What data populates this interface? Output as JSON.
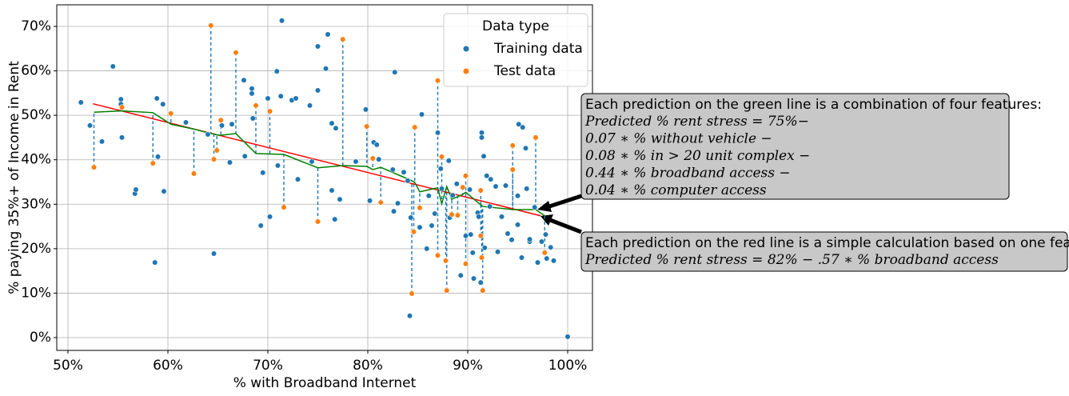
{
  "chart_data": {
    "type": "scatter",
    "xlabel": "% with Broadband Internet",
    "ylabel": "% paying 35%+ of Income in Rent",
    "xlim": [
      48.88,
      102.48
    ],
    "ylim": [
      -2.88,
      74.86
    ],
    "xticks": [
      {
        "value": 50,
        "label": "50%"
      },
      {
        "value": 60,
        "label": "60%"
      },
      {
        "value": 70,
        "label": "70%"
      },
      {
        "value": 80,
        "label": "80%"
      },
      {
        "value": 90,
        "label": "90%"
      },
      {
        "value": 100,
        "label": "100%"
      }
    ],
    "yticks": [
      {
        "value": 0,
        "label": "0%"
      },
      {
        "value": 10,
        "label": "10%"
      },
      {
        "value": 20,
        "label": "20%"
      },
      {
        "value": 30,
        "label": "30%"
      },
      {
        "value": 40,
        "label": "40%"
      },
      {
        "value": 50,
        "label": "50%"
      },
      {
        "value": 60,
        "label": "60%"
      },
      {
        "value": 70,
        "label": "70%"
      }
    ],
    "grid": true,
    "legend_title": "Data type",
    "legend_position": "upper right",
    "series": [
      {
        "name": "Training data",
        "color": "#1f77b4",
        "x": [
          51.3,
          52.2,
          53.4,
          54.5,
          55.3,
          55.3,
          55.4,
          56.7,
          56.8,
          58.7,
          58.9,
          59.0,
          59.5,
          59.6,
          61.8,
          64.0,
          64.6,
          65.4,
          66.2,
          66.4,
          67.6,
          67.7,
          68.4,
          68.4,
          68.5,
          69.3,
          69.5,
          70.0,
          70.2,
          70.9,
          71.0,
          71.3,
          71.4,
          72.4,
          72.8,
          73.0,
          74.2,
          74.4,
          75.0,
          75.0,
          75.8,
          76.0,
          76.4,
          76.4,
          76.7,
          76.8,
          77.2,
          78.8,
          79.8,
          80.2,
          80.6,
          80.9,
          81.1,
          82.5,
          82.6,
          82.7,
          83.0,
          83.6,
          84.0,
          84.2,
          84.3,
          85.2,
          85.4,
          85.9,
          86.1,
          86.4,
          86.7,
          87.0,
          87.3,
          87.4,
          88.1,
          88.2,
          88.5,
          88.9,
          89.3,
          89.8,
          90.2,
          90.3,
          90.5,
          90.6,
          91.0,
          91.1,
          91.3,
          91.4,
          91.4,
          91.6,
          91.7,
          91.9,
          92.2,
          92.3,
          92.8,
          93.0,
          93.4,
          93.8,
          94.0,
          94.4,
          95.0,
          95.0,
          95.1,
          95.4,
          95.5,
          95.8,
          95.9,
          96.2,
          96.2,
          96.7,
          97.0,
          97.4,
          97.8,
          97.9,
          98.3,
          98.6,
          100
        ],
        "values": [
          52.9,
          47.7,
          44.1,
          61.0,
          53.6,
          52.5,
          45.0,
          32.4,
          33.3,
          16.9,
          53.8,
          40.7,
          52.5,
          32.9,
          48.4,
          45.7,
          18.9,
          47.7,
          39.4,
          48.0,
          57.9,
          40.8,
          56.0,
          54.9,
          49.3,
          25.2,
          37.1,
          53.8,
          27.2,
          59.9,
          38.7,
          54.3,
          71.3,
          53.4,
          53.8,
          35.6,
          52.2,
          39.6,
          55.6,
          65.5,
          60.5,
          68.2,
          48.2,
          33.1,
          26.6,
          47.1,
          31.1,
          39.6,
          51.3,
          30.8,
          43.9,
          43.4,
          40.1,
          37.8,
          28.4,
          59.7,
          30.2,
          37.2,
          35.3,
          4.9,
          27.0,
          24.8,
          50.2,
          20.0,
          31.9,
          25.2,
          27.9,
          46.1,
          38.0,
          33.5,
          39.8,
          27.0,
          32.0,
          34.6,
          14.0,
          22.9,
          33.3,
          23.2,
          19.1,
          13.3,
          28.1,
          27.2,
          12.4,
          46.1,
          45.0,
          40.8,
          20.2,
          36.4,
          29.5,
          35.6,
          34.0,
          19.3,
          27.2,
          34.2,
          23.4,
          22.0,
          31.9,
          25.4,
          48.0,
          18.0,
          47.3,
          42.6,
          33.5,
          21.6,
          22.1,
          29.3,
          16.9,
          21.6,
          23.2,
          17.8,
          20.3,
          17.3,
          0.2
        ]
      },
      {
        "name": "Test data",
        "color": "#ff7f0e",
        "x": [
          52.6,
          55.4,
          58.5,
          60.3,
          62.6,
          64.3,
          64.6,
          64.9,
          65.3,
          66.8,
          68.8,
          70.2,
          71.6,
          75.0,
          77.5,
          79.9,
          80.5,
          81.3,
          84.4,
          84.6,
          84.7,
          85.2,
          87.0,
          87.0,
          87.4,
          87.8,
          87.9,
          88.4,
          89.0,
          89.5,
          89.8,
          89.8,
          91.3,
          91.4,
          91.5,
          91.3,
          94.5,
          94.5,
          96.8,
          97.7
        ],
        "values": [
          38.3,
          51.8,
          39.2,
          50.4,
          36.9,
          70.2,
          40.1,
          42.1,
          48.9,
          64.1,
          52.2,
          50.9,
          29.3,
          26.1,
          67.1,
          47.5,
          40.3,
          30.4,
          9.9,
          23.8,
          47.3,
          29.2,
          57.8,
          18.5,
          40.7,
          17.3,
          10.6,
          27.7,
          27.5,
          33.8,
          16.6,
          36.4,
          22.9,
          18.0,
          10.6,
          33.1,
          43.2,
          37.8,
          45.0,
          19.1
        ]
      }
    ],
    "fit_lines": [
      {
        "color": "#ff0000",
        "x": [
          52.5,
          97.3
        ],
        "values": [
          52.6,
          27.4
        ]
      },
      {
        "color": "#008000",
        "x": [
          52.6,
          55.4,
          58.5,
          60.3,
          62.6,
          64.3,
          64.6,
          64.9,
          65.3,
          66.8,
          68.8,
          70.2,
          71.6,
          75.0,
          77.5,
          79.9,
          80.5,
          81.3,
          84.4,
          84.7,
          85.2,
          87.0,
          87.4,
          87.9,
          88.4,
          89.5,
          89.8,
          91.5,
          94.5,
          96.8,
          97.7
        ],
        "values": [
          50.7,
          51.0,
          50.6,
          48.0,
          46.9,
          45.9,
          45.8,
          45.6,
          45.5,
          45.9,
          41.4,
          41.3,
          41.2,
          38.2,
          38.7,
          38.5,
          37.8,
          38.3,
          35.3,
          34.9,
          32.8,
          33.7,
          30.1,
          34.0,
          31.1,
          32.2,
          32.7,
          29.5,
          28.8,
          28.8,
          27.4
        ]
      }
    ],
    "annotations": [
      {
        "lines": [
          "Each prediction on the green line is a combination of four features:",
          "Predicted % rent stress = 75%−",
          "0.07 ∗ % without vehicle −",
          "0.08 ∗ % in  > 20 unit complex −",
          "0.44 ∗ % broadband access −",
          "0.04 ∗ % computer access"
        ]
      },
      {
        "lines": [
          "Each prediction on the red line is a simple calculation based on one feature:,",
          "Predicted % rent stress = 82% − .57 ∗ % broadband access"
        ]
      }
    ]
  }
}
